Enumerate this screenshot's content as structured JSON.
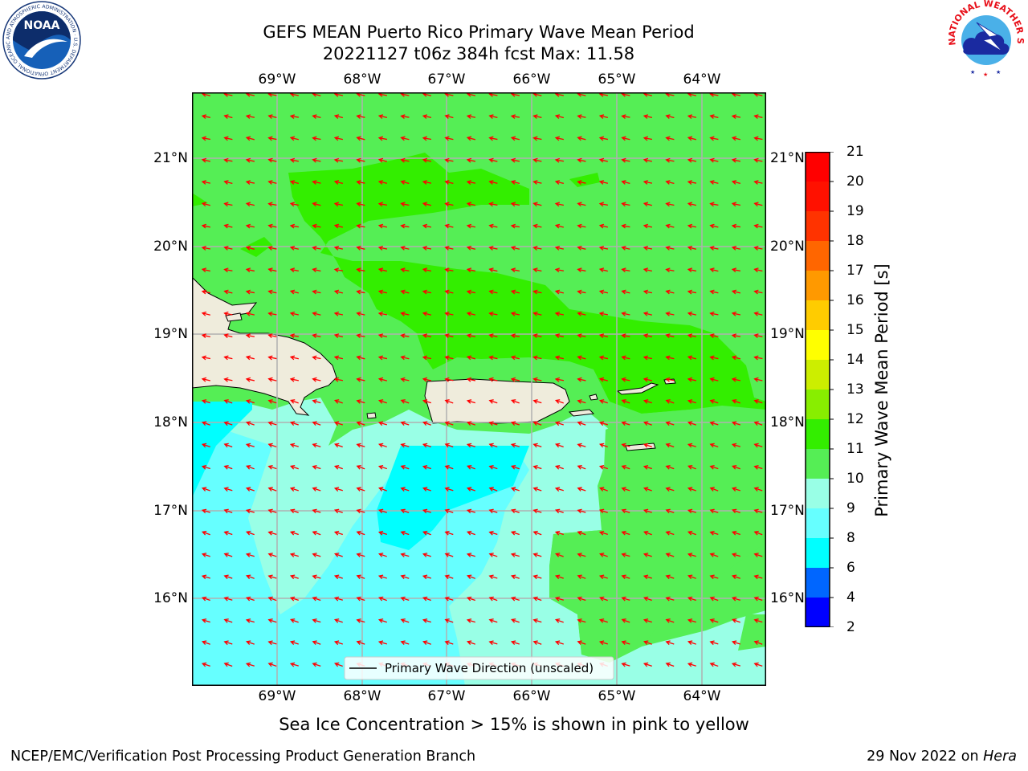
{
  "title_line1": "GEFS MEAN Puerto Rico Primary Wave Mean Period",
  "title_line2": "20221127 t06z 384h fcst   Max: 11.58",
  "lon_labels": [
    "69°W",
    "68°W",
    "67°W",
    "66°W",
    "65°W",
    "64°W"
  ],
  "lat_labels": [
    "21°N",
    "20°N",
    "19°N",
    "18°N",
    "17°N",
    "16°N"
  ],
  "legend_label": "Primary Wave Direction (unscaled)",
  "colorbar": {
    "title": "Primary Wave Mean Period [s]",
    "ticks": [
      "2",
      "4",
      "6",
      "8",
      "9",
      "10",
      "11",
      "12",
      "13",
      "14",
      "15",
      "16",
      "17",
      "18",
      "19",
      "20",
      "21"
    ],
    "colors": [
      "#0000ff",
      "#0066ff",
      "#00ffff",
      "#66ffff",
      "#99ffe6",
      "#55ee55",
      "#33ee00",
      "#88ee00",
      "#ccee00",
      "#ffff00",
      "#ffcc00",
      "#ff9900",
      "#ff6600",
      "#ff3300",
      "#ff1100",
      "#ff0000"
    ]
  },
  "sea_ice_note": "Sea Ice Concentration > 15% is shown in pink to yellow",
  "footer_left": "NCEP/EMC/Verification Post Processing Product Generation Branch",
  "footer_date": "29 Nov 2022 on",
  "footer_machine": "Hera",
  "noaa_logo_text": "NOAA",
  "noaa_ring_text": "NATIONAL OCEANIC AND ATMOSPHERIC ADMINISTRATION · U.S. DEPARTMENT OF COMMERCE ·",
  "nws_ring_text": "NATIONAL WEATHER SERVICE",
  "colors": {
    "period_10_11": "#55ee55",
    "period_11_12": "#33ee00",
    "period_9_10": "#99ffe6",
    "period_8_9": "#66ffff",
    "period_6_8": "#00ffff",
    "land": "#efecdc",
    "arrows": "#ff0000",
    "grid": "#b0b0b0"
  }
}
